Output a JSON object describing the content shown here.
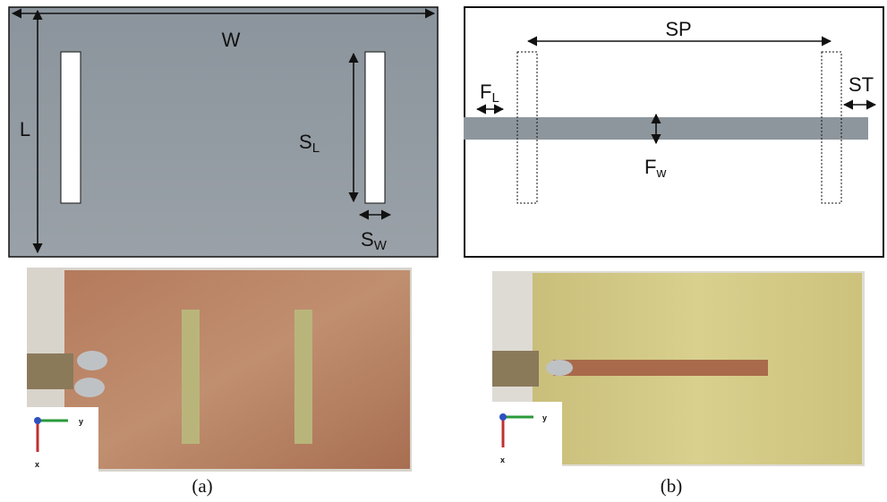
{
  "panel_a": {
    "width_label": "W",
    "length_label": "L",
    "slot_length_label": {
      "main": "S",
      "sub": "L"
    },
    "slot_width_label": {
      "main": "S",
      "sub": "W"
    },
    "caption": "(a)"
  },
  "panel_b": {
    "spacing_label": "SP",
    "feed_length_label": {
      "main": "F",
      "sub": "L"
    },
    "stub_label": "ST",
    "feed_width_label": {
      "main": "F",
      "sub": "w"
    },
    "caption": "(b)"
  },
  "photo_axes": {
    "horizontal": "y",
    "vertical": "x"
  }
}
